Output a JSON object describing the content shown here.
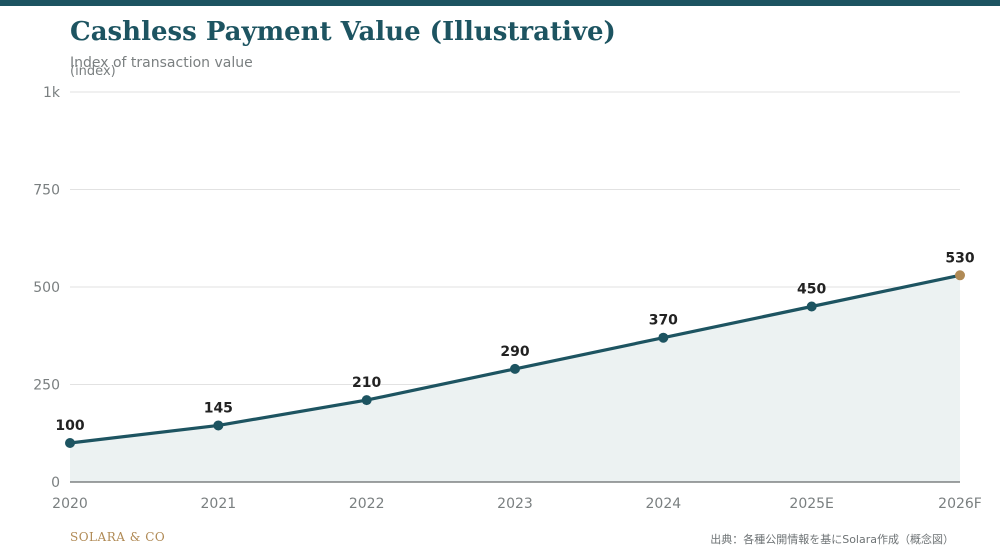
{
  "header": {
    "title": "Cashless Payment Value (Illustrative)",
    "subtitle": "Index of transaction value"
  },
  "footer": {
    "brand": "SOLARA & CO",
    "source": "出典：各種公開情報を基にSolara作成（概念図）"
  },
  "colors": {
    "line": "#1d5461",
    "area": "#ecf2f2",
    "forecast_marker": "#b08a55",
    "grid": "#e2e2e2",
    "axis_text": "#7a7f80",
    "label_text": "#222222"
  },
  "chart_data": {
    "type": "area",
    "title": "Cashless Payment Value (Illustrative)",
    "subtitle": "Index of transaction value",
    "ylabel": "(index)",
    "xlabel": "",
    "categories": [
      "2020",
      "2021",
      "2022",
      "2023",
      "2024",
      "2025E",
      "2026F"
    ],
    "values": [
      100,
      145,
      210,
      290,
      370,
      450,
      530
    ],
    "ylim": [
      0,
      1000
    ],
    "yticks": [
      0,
      250,
      500,
      750,
      1000
    ],
    "ytick_labels": [
      "0",
      "250",
      "500",
      "750",
      "1k"
    ],
    "grid": true,
    "legend": "none",
    "highlight_last_point": true
  }
}
